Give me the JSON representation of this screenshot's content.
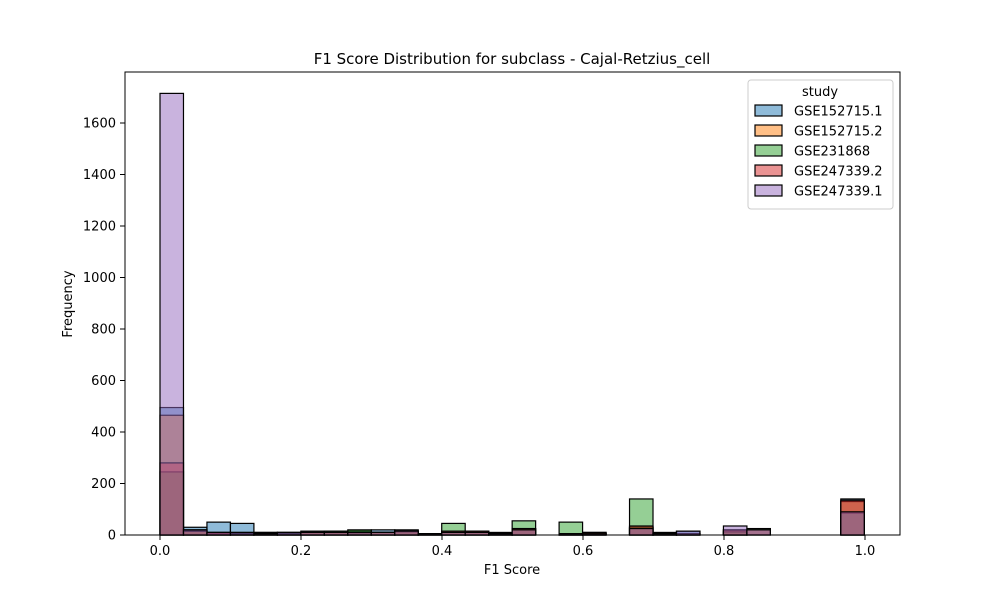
{
  "chart_data": {
    "type": "bar",
    "title": "F1 Score Distribution for subclass - Cajal-Retzius_cell",
    "xlabel": "F1 Score",
    "ylabel": "Frequency",
    "xlim": [
      -0.05,
      1.05
    ],
    "ylim": [
      0,
      1800
    ],
    "xticks": [
      0.0,
      0.2,
      0.4,
      0.6,
      0.8,
      1.0
    ],
    "yticks": [
      0,
      200,
      400,
      600,
      800,
      1000,
      1200,
      1400,
      1600
    ],
    "bin_start": 0.0,
    "bin_width": 0.0333,
    "grid": false,
    "legend": {
      "title": "study",
      "position": "top-right"
    },
    "series": [
      {
        "name": "GSE152715.1",
        "color": "#1f77b4",
        "values": [
          495,
          30,
          50,
          45,
          10,
          10,
          15,
          15,
          15,
          20,
          20,
          5,
          15,
          15,
          10,
          25,
          0,
          5,
          5,
          0,
          30,
          5,
          15,
          0,
          20,
          0,
          0,
          0,
          0,
          140
        ]
      },
      {
        "name": "GSE152715.2",
        "color": "#ff7f0e",
        "values": [
          465,
          20,
          10,
          10,
          10,
          5,
          10,
          10,
          5,
          10,
          10,
          5,
          10,
          10,
          5,
          20,
          0,
          5,
          5,
          0,
          30,
          5,
          5,
          0,
          10,
          0,
          0,
          0,
          0,
          130
        ]
      },
      {
        "name": "GSE231868",
        "color": "#2ca02c",
        "values": [
          245,
          15,
          5,
          5,
          5,
          10,
          10,
          15,
          20,
          10,
          15,
          5,
          45,
          15,
          5,
          55,
          0,
          50,
          10,
          0,
          140,
          10,
          5,
          0,
          15,
          25,
          0,
          0,
          0,
          85
        ]
      },
      {
        "name": "GSE247339.2",
        "color": "#d62728",
        "values": [
          280,
          15,
          10,
          5,
          5,
          5,
          10,
          10,
          10,
          10,
          15,
          5,
          15,
          15,
          5,
          25,
          0,
          5,
          10,
          0,
          35,
          5,
          5,
          0,
          20,
          20,
          0,
          0,
          0,
          135
        ]
      },
      {
        "name": "GSE247339.1",
        "color": "#9467bd",
        "values": [
          1715,
          20,
          10,
          10,
          5,
          10,
          10,
          10,
          10,
          10,
          15,
          5,
          10,
          10,
          5,
          20,
          0,
          5,
          5,
          0,
          25,
          5,
          15,
          0,
          35,
          20,
          0,
          0,
          0,
          90
        ]
      }
    ]
  }
}
